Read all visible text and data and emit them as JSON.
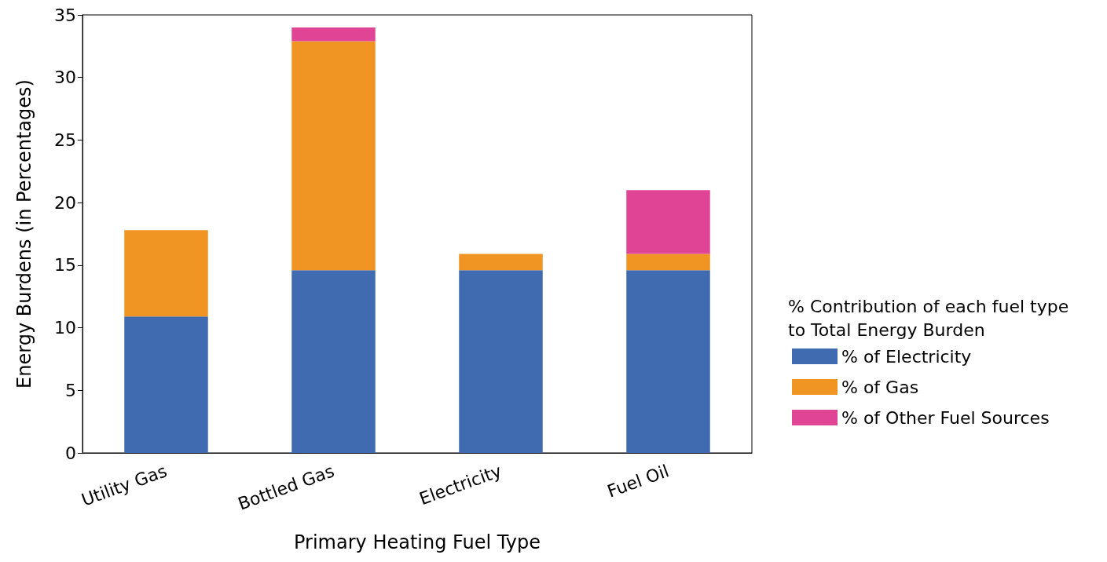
{
  "chart_data": {
    "type": "bar",
    "stacked": true,
    "xlabel": "Primary Heating Fuel Type",
    "ylabel": "Energy Burdens (in Percentages)",
    "legend_title": "% Contribution of each fuel type\nto Total Energy Burden",
    "categories": [
      "Utility Gas",
      "Bottled Gas",
      "Electricity",
      "Fuel Oil"
    ],
    "series": [
      {
        "name": "% of Electricity",
        "color": "#416bb1",
        "values": [
          10.9,
          14.6,
          14.6,
          14.6
        ]
      },
      {
        "name": "% of Gas",
        "color": "#f09524",
        "values": [
          6.9,
          18.3,
          1.3,
          1.3
        ]
      },
      {
        "name": "% of Other Fuel Sources",
        "color": "#e04495",
        "values": [
          0,
          1.1,
          0,
          5.1
        ]
      }
    ],
    "ylim": [
      0,
      35
    ],
    "yticks": [
      0,
      5,
      10,
      15,
      20,
      25,
      30,
      35
    ],
    "grid": false,
    "legend": "right"
  }
}
